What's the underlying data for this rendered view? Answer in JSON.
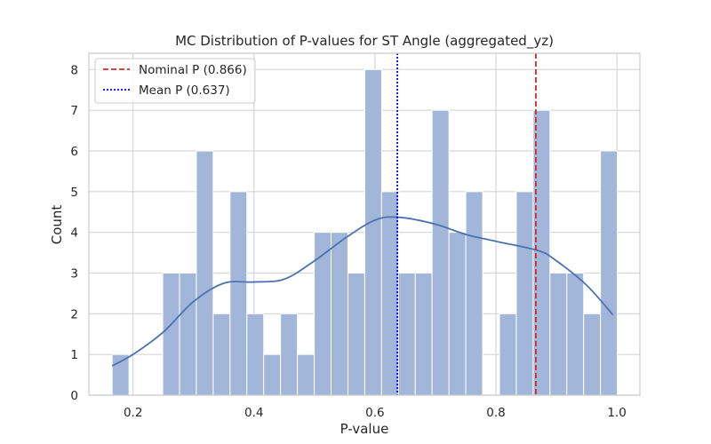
{
  "chart_data": {
    "type": "bar",
    "title": "MC Distribution of P-values for ST Angle (aggregated_yz)",
    "xlabel": "P-value",
    "ylabel": "Count",
    "xlim": [
      0.127,
      1.038
    ],
    "ylim": [
      0,
      8.4
    ],
    "grid": true,
    "legend_position": "top-left",
    "bin_start": 0.1655,
    "bin_width": 0.02784,
    "values": [
      1,
      0,
      0,
      3,
      3,
      6,
      2,
      5,
      2,
      1,
      2,
      1,
      4,
      4,
      3,
      8,
      5,
      3,
      3,
      7,
      4,
      5,
      0,
      2,
      5,
      7,
      3,
      3,
      2,
      6
    ],
    "xticks": [
      0.2,
      0.4,
      0.6,
      0.8,
      1.0
    ],
    "xtick_labels": [
      "0.2",
      "0.4",
      "0.6",
      "0.8",
      "1.0"
    ],
    "yticks": [
      0,
      1,
      2,
      3,
      4,
      5,
      6,
      7,
      8
    ],
    "ytick_labels": [
      "0",
      "1",
      "2",
      "3",
      "4",
      "5",
      "6",
      "7",
      "8"
    ],
    "kde": {
      "x": [
        0.1655,
        0.2,
        0.25,
        0.3,
        0.35,
        0.4,
        0.45,
        0.5,
        0.55,
        0.6,
        0.64,
        0.7,
        0.75,
        0.8,
        0.87,
        0.9,
        0.95,
        0.9935
      ],
      "y": [
        0.72,
        1.0,
        1.55,
        2.3,
        2.75,
        2.78,
        2.85,
        3.3,
        3.85,
        4.3,
        4.37,
        4.2,
        3.95,
        3.78,
        3.55,
        3.3,
        2.7,
        1.97
      ]
    },
    "vlines": [
      {
        "name": "Nominal P (0.866)",
        "x": 0.866,
        "color": "#d62728",
        "style": "dashed"
      },
      {
        "name": "Mean P (0.637)",
        "x": 0.637,
        "color": "#0000ff",
        "style": "dotted"
      }
    ],
    "bar_color": "#a1b6d8",
    "kde_color": "#4c72b0"
  }
}
